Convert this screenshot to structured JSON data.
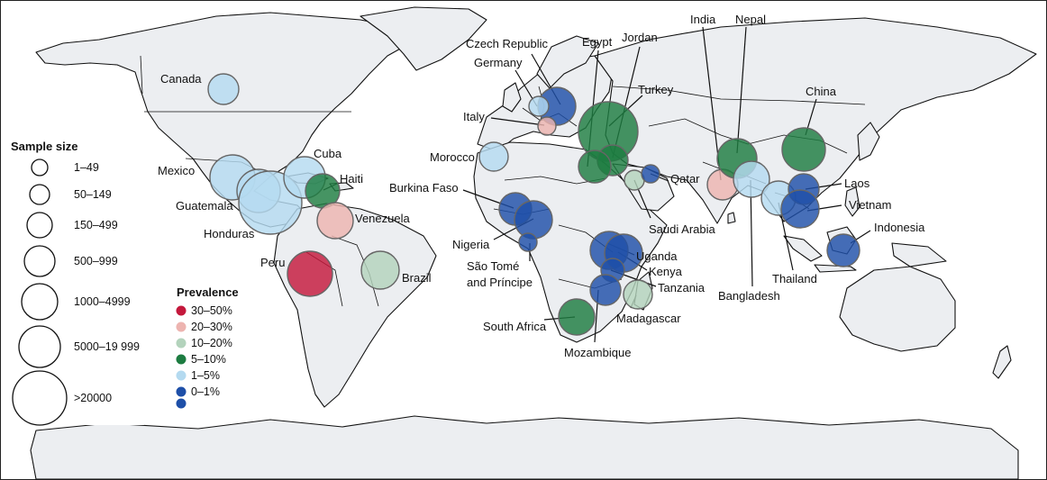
{
  "colors": {
    "prevalence_30_50": "#c4183c",
    "prevalence_20_30": "#edb4b0",
    "prevalence_10_20": "#b3d3bc",
    "prevalence_5_10": "#1d7c41",
    "prevalence_1_5": "#b4daf0",
    "prevalence_0_1": "#1e4fa8",
    "land": "#eceef1",
    "outline": "#111111"
  },
  "legend": {
    "sample_size": {
      "title": "Sample size",
      "items": [
        "1–49",
        "50–149",
        "150–499",
        "500–999",
        "1000–4999",
        "5000–19 999",
        ">20000"
      ]
    },
    "prevalence": {
      "title": "Prevalence",
      "items": [
        "30–50%",
        "20–30%",
        "10–20%",
        "5–10%",
        "1–5%",
        "0–1%"
      ]
    }
  },
  "countries": [
    {
      "name": "Canada"
    },
    {
      "name": "Mexico"
    },
    {
      "name": "Guatemala"
    },
    {
      "name": "Honduras"
    },
    {
      "name": "Cuba"
    },
    {
      "name": "Haiti"
    },
    {
      "name": "Venezuela"
    },
    {
      "name": "Peru"
    },
    {
      "name": "Brazil"
    },
    {
      "name": "Czech Republic"
    },
    {
      "name": "Germany"
    },
    {
      "name": "Italy"
    },
    {
      "name": "Morocco"
    },
    {
      "name": "Burkina Faso"
    },
    {
      "name": "Nigeria"
    },
    {
      "name": "São Tomé",
      "line2": "and Príncipe"
    },
    {
      "name": "South Africa"
    },
    {
      "name": "Mozambique"
    },
    {
      "name": "Madagascar"
    },
    {
      "name": "Tanzania"
    },
    {
      "name": "Kenya"
    },
    {
      "name": "Uganda"
    },
    {
      "name": "Egypt"
    },
    {
      "name": "Jordan"
    },
    {
      "name": "Turkey"
    },
    {
      "name": "Qatar"
    },
    {
      "name": "Saudi Arabia"
    },
    {
      "name": "India"
    },
    {
      "name": "Nepal"
    },
    {
      "name": "Bangladesh"
    },
    {
      "name": "China"
    },
    {
      "name": "Thailand"
    },
    {
      "name": "Laos"
    },
    {
      "name": "Vietnam"
    },
    {
      "name": "Indonesia"
    }
  ]
}
